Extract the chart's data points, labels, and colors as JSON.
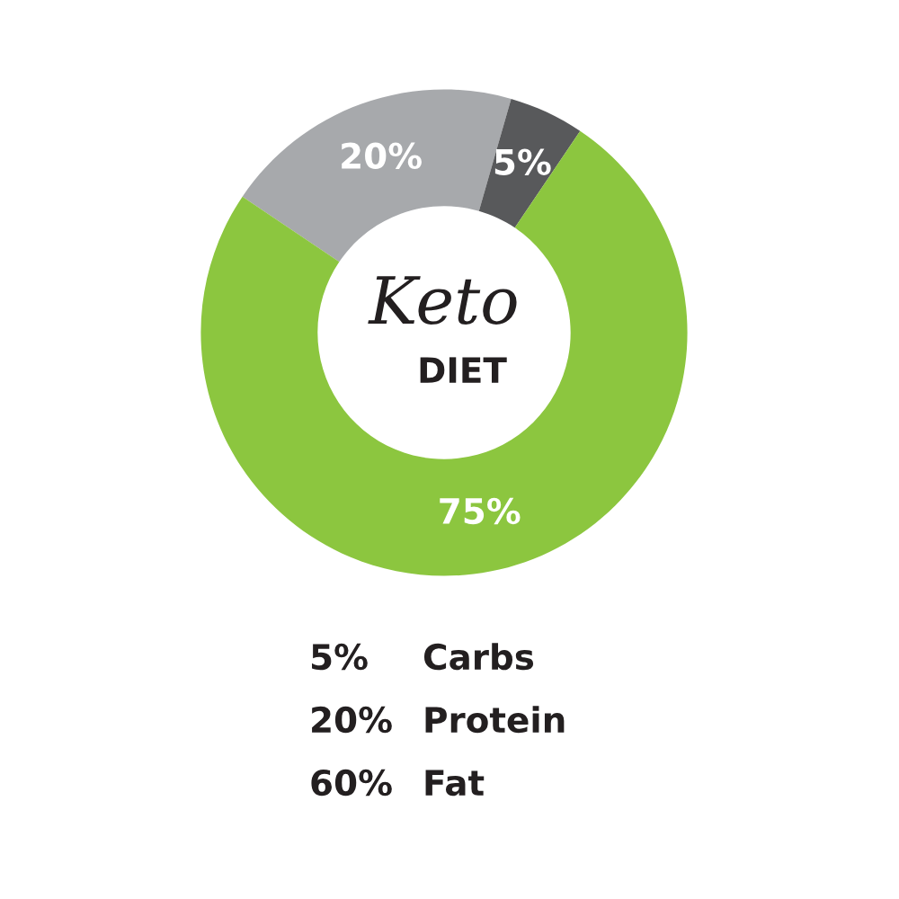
{
  "chart_data": {
    "type": "donut",
    "categories": [
      null,
      null,
      null
    ],
    "values": [
      20,
      5,
      75
    ],
    "colors": [
      "#a7a9ac",
      "#58595b",
      "#8cc63f"
    ],
    "value_labels": [
      "20%",
      "5%",
      "75%"
    ],
    "legend": false,
    "annotations": [
      "Keto",
      "DIET",
      "5% Carbs",
      "20% Protein",
      "60% Fat"
    ]
  }
}
